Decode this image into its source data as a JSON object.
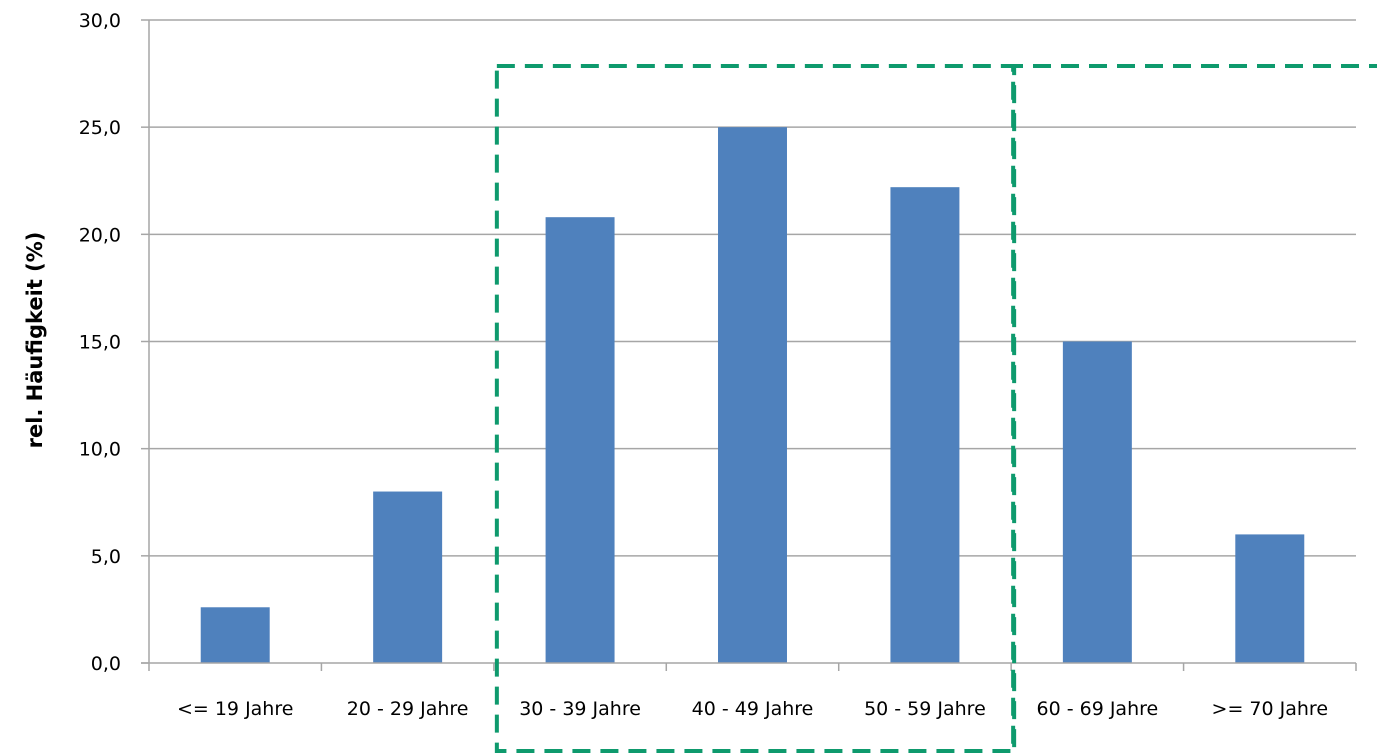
{
  "chart_data": {
    "type": "bar",
    "title": "",
    "xlabel": "",
    "ylabel": "rel. Häufigkeit (%)",
    "categories": [
      "<= 19 Jahre",
      "20 - 29 Jahre",
      "30 - 39 Jahre",
      "40 - 49 Jahre",
      "50 - 59 Jahre",
      "60 - 69 Jahre",
      ">= 70 Jahre"
    ],
    "values": [
      2.6,
      8.0,
      20.8,
      25.0,
      22.2,
      15.0,
      6.0
    ],
    "ylim": [
      0,
      30
    ],
    "yticks": [
      "0,0",
      "5,0",
      "10,0",
      "15,0",
      "20,0",
      "25,0",
      "30,0"
    ],
    "grid": true,
    "legend": "none",
    "bar_color": "#4f81bd",
    "gridline_color": "#a6a6a6",
    "highlight_boxes": [
      {
        "categories": [
          "30 - 39 Jahre",
          "40 - 49 Jahre",
          "50 - 59 Jahre"
        ],
        "color": "#0e9a6d",
        "style": "dashed"
      },
      {
        "categories": [
          "60 - 69 Jahre",
          ">= 70 Jahre"
        ],
        "color": "#0e9a6d",
        "style": "dashed"
      }
    ]
  }
}
